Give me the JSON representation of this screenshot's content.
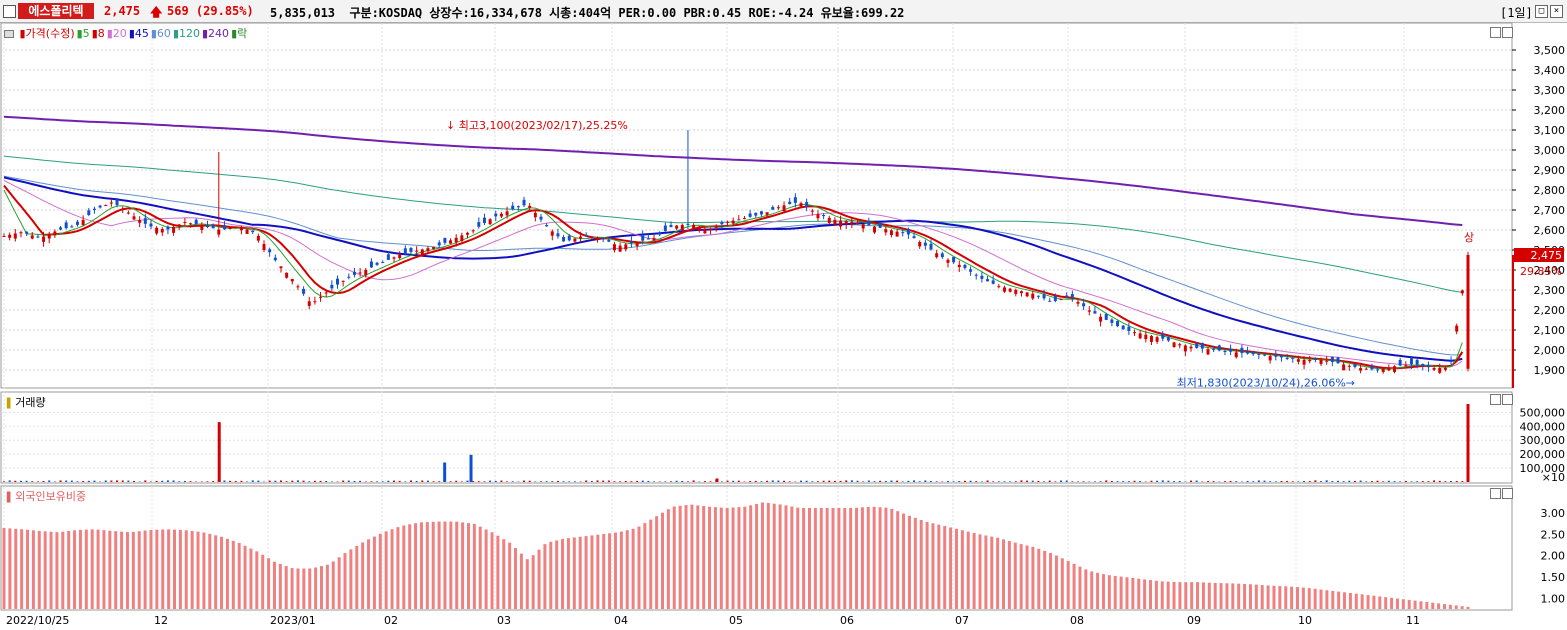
{
  "header": {
    "stock_name": "에스폴리텍",
    "price": "2,475",
    "change": "569",
    "change_pct": "(29.85%)",
    "volume": "5,835,013",
    "info": "구분:KOSDAQ 상장수:16,334,678 시총:404억 PER:0.00 PBR:0.45 ROE:-4.24 유보율:699.22",
    "period": "[1일]"
  },
  "legend_price": [
    {
      "label": "가격(수정)",
      "color": "#d40000"
    },
    {
      "label": "5",
      "color": "#2aa02a"
    },
    {
      "label": "8",
      "color": "#d40000"
    },
    {
      "label": "20",
      "color": "#d070d0"
    },
    {
      "label": "45",
      "color": "#1010c0"
    },
    {
      "label": "60",
      "color": "#6090d0"
    },
    {
      "label": "120",
      "color": "#2aa080"
    },
    {
      "label": "240",
      "color": "#7020b0"
    },
    {
      "label": "락",
      "color": "#2a8a2a"
    }
  ],
  "panel_volume_title": "거래량",
  "panel_foreign_title": "외국인보유비중",
  "annotations": {
    "high": "최고3,100(2023/02/17),25.25%",
    "low": "최저1,830(2023/10/24),26.06%",
    "limit_up": "상",
    "last_price": "2,475",
    "last_pct": "29.85%",
    "vol_unit": "×10"
  },
  "colors": {
    "up": "#d40000",
    "down": "#1050d0",
    "ma240": "#7020b0",
    "ma45": "#1010c0",
    "ma120": "#2aa080",
    "ma60": "#6090d0",
    "ma20": "#d070d0",
    "ma8": "#d40000",
    "ma5": "#2aa02a",
    "foreign_bar": "#f08080"
  },
  "chart_data": [
    {
      "type": "candlestick",
      "title": "가격(수정)",
      "ylim": [
        1820,
        3600
      ],
      "y_ticks": [
        "1,900",
        "2,000",
        "2,100",
        "2,200",
        "2,300",
        "2,400",
        "2,500",
        "2,600",
        "2,700",
        "2,800",
        "2,900",
        "3,000",
        "3,100",
        "3,200",
        "3,300",
        "3,400",
        "3,500"
      ],
      "x_labels": [
        "2022/10/25",
        "12",
        "2023/01",
        "02",
        "03",
        "04",
        "05",
        "06",
        "07",
        "08",
        "09",
        "10",
        "11"
      ],
      "close_path": [
        2570,
        2590,
        2560,
        2600,
        2620,
        2700,
        2740,
        2680,
        2620,
        2600,
        2640,
        2620,
        2600,
        2620,
        2580,
        2450,
        2350,
        2230,
        2300,
        2360,
        2400,
        2440,
        2480,
        2500,
        2520,
        2560,
        2600,
        2660,
        2700,
        2730,
        2620,
        2540,
        2570,
        2560,
        2520,
        2540,
        2560,
        2620,
        2630,
        2600,
        2640,
        2660,
        2680,
        2720,
        2740,
        2680,
        2650,
        2640,
        2620,
        2600,
        2580,
        2520,
        2460,
        2420,
        2360,
        2320,
        2300,
        2280,
        2240,
        2270,
        2200,
        2150,
        2100,
        2080,
        2060,
        2030,
        2010,
        2000,
        1990,
        1980,
        1970,
        1960,
        1950,
        1950,
        1930,
        1910,
        1900,
        1920,
        1930,
        1910,
        1910,
        2475
      ],
      "high": {
        "value": 3100,
        "date": "2023/02/17"
      },
      "low": {
        "value": 1830,
        "date": "2023/10/24"
      },
      "last": 2475
    },
    {
      "type": "bar",
      "title": "거래량",
      "y_ticks": [
        "100,000",
        "200,000",
        "300,000",
        "400,000",
        "500,000"
      ],
      "ylim": [
        0,
        560000
      ],
      "spikes": [
        {
          "x_index": 0.147,
          "value": 430000,
          "color": "up"
        },
        {
          "x_index": 0.301,
          "value": 140000,
          "color": "down"
        },
        {
          "x_index": 0.319,
          "value": 195000,
          "color": "down"
        },
        {
          "x_index": 0.487,
          "value": 25000,
          "color": "up"
        },
        {
          "x_index": 1.0,
          "value": 560000,
          "color": "up"
        }
      ]
    },
    {
      "type": "bar",
      "title": "외국인보유비중",
      "y_ticks": [
        "1.00",
        "1.50",
        "2.00",
        "2.50",
        "3.00"
      ],
      "ylim": [
        0.75,
        3.4
      ],
      "values": [
        2.65,
        2.62,
        2.58,
        2.55,
        2.6,
        2.62,
        2.58,
        2.55,
        2.6,
        2.62,
        2.6,
        2.55,
        2.45,
        2.3,
        2.1,
        1.85,
        1.7,
        1.7,
        1.8,
        2.1,
        2.35,
        2.55,
        2.7,
        2.78,
        2.8,
        2.8,
        2.75,
        2.55,
        2.3,
        1.9,
        2.3,
        2.4,
        2.45,
        2.5,
        2.55,
        2.65,
        2.9,
        3.15,
        3.2,
        3.15,
        3.12,
        3.15,
        3.25,
        3.2,
        3.12,
        3.12,
        3.12,
        3.12,
        3.15,
        3.12,
        2.95,
        2.8,
        2.7,
        2.6,
        2.5,
        2.42,
        2.3,
        2.2,
        2.05,
        1.85,
        1.65,
        1.55,
        1.5,
        1.45,
        1.4,
        1.38,
        1.38,
        1.36,
        1.35,
        1.33,
        1.3,
        1.28,
        1.25,
        1.2,
        1.15,
        1.1,
        1.05,
        1.0,
        0.95,
        0.9,
        0.85,
        0.8
      ]
    }
  ]
}
